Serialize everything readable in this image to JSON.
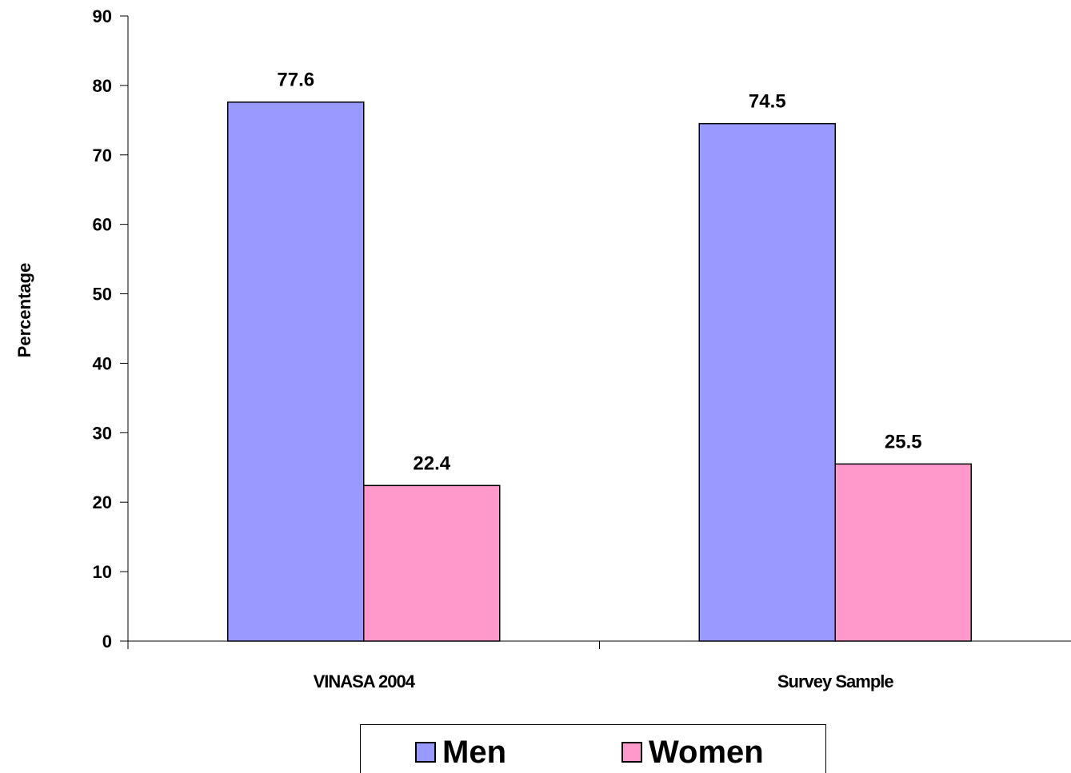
{
  "chart_data": {
    "type": "bar",
    "categories": [
      "VINASA 2004",
      "Survey Sample"
    ],
    "series": [
      {
        "name": "Men",
        "values": [
          77.6,
          74.5
        ],
        "color": "#9999ff"
      },
      {
        "name": "Women",
        "values": [
          22.4,
          25.5
        ],
        "color": "#ff99cc"
      }
    ],
    "data_labels": [
      [
        "77.6",
        "74.5"
      ],
      [
        "22.4",
        "25.5"
      ]
    ],
    "title": "",
    "xlabel": "",
    "ylabel": "Percentage",
    "ylim": [
      0,
      90
    ],
    "yticks": [
      0,
      10,
      20,
      30,
      40,
      50,
      60,
      70,
      80,
      90
    ],
    "grid": false,
    "legend_position": "bottom"
  }
}
